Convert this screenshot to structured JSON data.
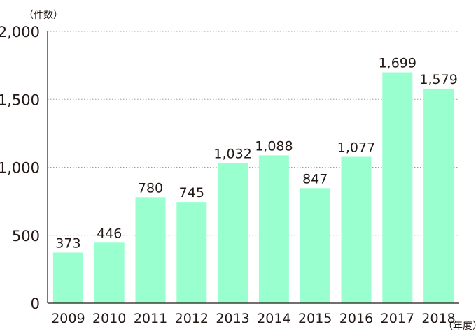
{
  "chart_data": {
    "type": "bar",
    "categories": [
      "2009",
      "2010",
      "2011",
      "2012",
      "2013",
      "2014",
      "2015",
      "2016",
      "2017",
      "2018"
    ],
    "values": [
      373,
      446,
      780,
      745,
      1032,
      1088,
      847,
      1077,
      1699,
      1579
    ],
    "value_labels": [
      "373",
      "446",
      "780",
      "745",
      "1,032",
      "1,088",
      "847",
      "1,077",
      "1,699",
      "1,579"
    ],
    "y_ticks": [
      0,
      500,
      1000,
      1500,
      2000
    ],
    "y_tick_labels": [
      "0",
      "500",
      "1,000",
      "1,500",
      "2,000"
    ],
    "ylim": [
      0,
      2000
    ],
    "y_unit": "（件数）",
    "x_unit": "（年度）",
    "grid": "horizontal dotted",
    "bar_color": "#9affcf",
    "axis_color": "#231815",
    "grid_color": "#9d9d9d"
  }
}
